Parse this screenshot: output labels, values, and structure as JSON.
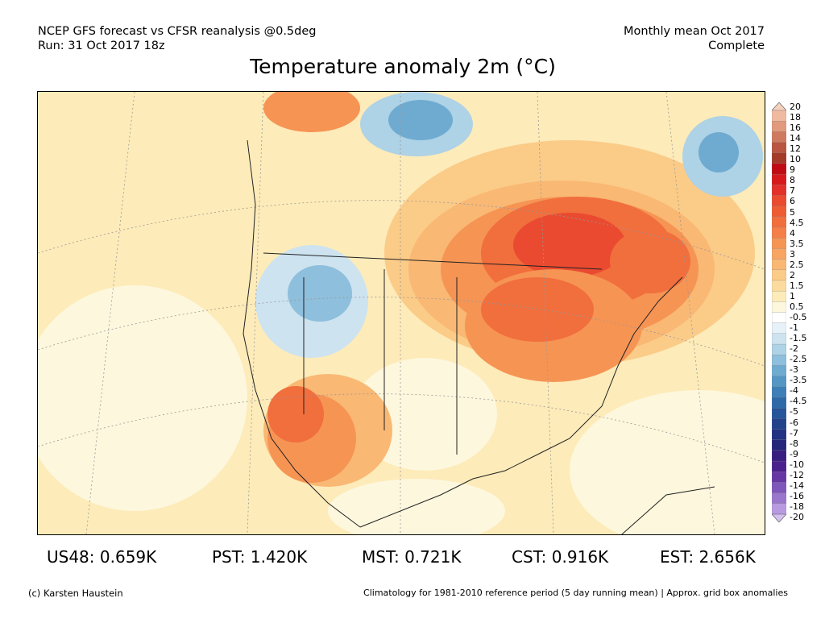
{
  "header": {
    "line1": "NCEP GFS forecast vs CFSR reanalysis @0.5deg",
    "line2": "Run: 31 Oct 2017 18z",
    "right1": "Monthly mean Oct 2017",
    "right2": "Complete"
  },
  "title": "Temperature anomaly 2m (°C)",
  "colorbar": {
    "labels": [
      "20",
      "18",
      "16",
      "14",
      "12",
      "10",
      "9",
      "8",
      "7",
      "6",
      "5",
      "4.5",
      "4",
      "3.5",
      "3",
      "2.5",
      "2",
      "1.5",
      "1",
      "0.5",
      "-0.5",
      "-1",
      "-1.5",
      "-2",
      "-2.5",
      "-3",
      "-3.5",
      "-4",
      "-4.5",
      "-5",
      "-6",
      "-7",
      "-8",
      "-9",
      "-10",
      "-12",
      "-14",
      "-16",
      "-18",
      "-20"
    ],
    "colors": [
      "#f6d2bd",
      "#efbaa0",
      "#e19a7d",
      "#cf7a5e",
      "#b95540",
      "#a43a28",
      "#c10b12",
      "#d61a1c",
      "#e3302a",
      "#ea4a30",
      "#ee5c34",
      "#f16e3d",
      "#f47f48",
      "#f69454",
      "#f8a563",
      "#f9b874",
      "#fbcb88",
      "#fcdc9e",
      "#fdebb9",
      "#fdf7dd",
      "#ffffff",
      "#e6f1f8",
      "#cde3f0",
      "#aed2e6",
      "#8ebfdc",
      "#6fabd1",
      "#5497c4",
      "#3d7fb6",
      "#2e6aa8",
      "#25559a",
      "#22428c",
      "#213283",
      "#24257b",
      "#381d80",
      "#4b1f8c",
      "#6637a4",
      "#7f56b9",
      "#9a77cd",
      "#b89ae0",
      "#d4c0ef"
    ]
  },
  "map": {
    "background_color": "#fffde8",
    "warm_colors": [
      "#fdebb9",
      "#fbcb88",
      "#f9b874",
      "#f69454",
      "#f16e3d",
      "#ea4a30"
    ],
    "cool_colors": [
      "#e6f1f8",
      "#aed2e6",
      "#6fabd1",
      "#5497c4"
    ]
  },
  "stats": [
    {
      "label": "US48:",
      "value": "0.659K"
    },
    {
      "label": "PST:",
      "value": "1.420K"
    },
    {
      "label": "MST:",
      "value": "0.721K"
    },
    {
      "label": "CST:",
      "value": "0.916K"
    },
    {
      "label": "EST:",
      "value": "2.656K"
    }
  ],
  "footer": {
    "left": "(c) Karsten Haustein",
    "right": "Climatology for 1981-2010 reference period (5 day running mean) | Approx. grid box anomalies"
  }
}
